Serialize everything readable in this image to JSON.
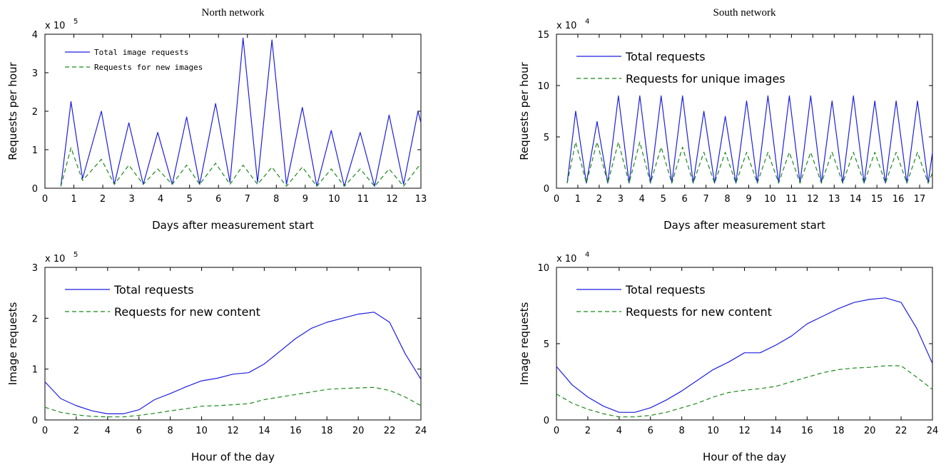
{
  "colors": {
    "total": "#1f1fe0",
    "unique": "#1a8a1a",
    "axis": "#000000"
  },
  "chart_data": [
    {
      "id": "north-daily",
      "type": "line",
      "title": "North network",
      "xlabel": "Days after measurement start",
      "ylabel": "Requests per hour",
      "multiplier": {
        "base": "x 10",
        "exp": "5"
      },
      "xlim": [
        0,
        13
      ],
      "ylim": [
        0,
        4
      ],
      "xticks": [
        0,
        1,
        2,
        3,
        4,
        5,
        6,
        7,
        8,
        9,
        10,
        11,
        12,
        13
      ],
      "yticks": [
        0,
        1,
        2,
        3,
        4
      ],
      "legend_position": "top-left",
      "legend_style": "mono",
      "series": [
        {
          "name": "Total image requests",
          "style": "solid",
          "color_key": "total",
          "daily_peaks": [
            2.25,
            2.0,
            1.7,
            1.45,
            1.85,
            2.2,
            3.9,
            3.85,
            2.1,
            1.5,
            1.45,
            1.9,
            2.0
          ],
          "x": [
            0.55,
            0.9,
            1.3,
            1.95,
            2.4,
            2.9,
            3.4,
            3.9,
            4.4,
            4.9,
            5.35,
            5.9,
            6.4,
            6.85,
            7.35,
            7.85,
            8.35,
            8.9,
            9.4,
            9.9,
            10.35,
            10.9,
            11.4,
            11.9,
            12.4,
            12.9,
            13.0
          ],
          "values": [
            0.05,
            2.25,
            0.25,
            2.0,
            0.1,
            1.7,
            0.1,
            1.45,
            0.1,
            1.85,
            0.1,
            2.2,
            0.15,
            3.9,
            0.15,
            3.85,
            0.1,
            2.1,
            0.05,
            1.5,
            0.05,
            1.45,
            0.05,
            1.9,
            0.1,
            2.0,
            1.7
          ]
        },
        {
          "name": "Requests for new images",
          "style": "dashed",
          "color_key": "unique",
          "x": [
            0.55,
            0.9,
            1.3,
            1.95,
            2.4,
            2.9,
            3.4,
            3.9,
            4.4,
            4.9,
            5.35,
            5.9,
            6.4,
            6.85,
            7.35,
            7.85,
            8.35,
            8.9,
            9.4,
            9.9,
            10.35,
            10.9,
            11.4,
            11.9,
            12.4,
            12.9,
            13.0
          ],
          "values": [
            0.05,
            1.05,
            0.2,
            0.75,
            0.1,
            0.6,
            0.1,
            0.5,
            0.1,
            0.6,
            0.1,
            0.65,
            0.1,
            0.6,
            0.1,
            0.55,
            0.05,
            0.55,
            0.05,
            0.5,
            0.05,
            0.5,
            0.05,
            0.5,
            0.05,
            0.55,
            0.6
          ]
        }
      ]
    },
    {
      "id": "south-daily",
      "type": "line",
      "title": "South network",
      "xlabel": "Days after measurement start",
      "ylabel": "Requests per hour",
      "multiplier": {
        "base": "x 10",
        "exp": "4"
      },
      "xlim": [
        0,
        17.6
      ],
      "ylim": [
        0,
        15
      ],
      "xticks": [
        0,
        1,
        2,
        3,
        4,
        5,
        6,
        7,
        8,
        9,
        10,
        11,
        12,
        13,
        14,
        15,
        16,
        17
      ],
      "yticks": [
        0,
        5,
        10,
        15
      ],
      "legend_position": "top-left",
      "legend_style": "normal",
      "series": [
        {
          "name": "Total requests",
          "style": "solid",
          "color_key": "total",
          "x": [
            0.5,
            0.9,
            1.4,
            1.9,
            2.4,
            2.9,
            3.4,
            3.9,
            4.4,
            4.9,
            5.4,
            5.9,
            6.4,
            6.9,
            7.4,
            7.9,
            8.4,
            8.9,
            9.4,
            9.9,
            10.4,
            10.9,
            11.4,
            11.9,
            12.4,
            12.9,
            13.4,
            13.9,
            14.4,
            14.9,
            15.4,
            15.9,
            16.4,
            16.9,
            17.4,
            17.6
          ],
          "values": [
            0.5,
            7.5,
            0.5,
            6.5,
            0.5,
            9.0,
            0.5,
            9.0,
            0.5,
            9.0,
            0.5,
            9.0,
            0.5,
            7.5,
            0.5,
            7.0,
            0.5,
            8.5,
            0.5,
            9.0,
            0.5,
            9.0,
            0.5,
            9.0,
            0.5,
            8.5,
            0.5,
            9.0,
            0.5,
            8.5,
            0.5,
            8.5,
            0.5,
            8.5,
            0.5,
            3.5
          ]
        },
        {
          "name": "Requests for unique images",
          "style": "dashed",
          "color_key": "unique",
          "x": [
            0.5,
            0.9,
            1.4,
            1.9,
            2.4,
            2.9,
            3.4,
            3.9,
            4.4,
            4.9,
            5.4,
            5.9,
            6.4,
            6.9,
            7.4,
            7.9,
            8.4,
            8.9,
            9.4,
            9.9,
            10.4,
            10.9,
            11.4,
            11.9,
            12.4,
            12.9,
            13.4,
            13.9,
            14.4,
            14.9,
            15.4,
            15.9,
            16.4,
            16.9,
            17.4,
            17.6
          ],
          "values": [
            0.5,
            4.5,
            0.5,
            4.5,
            0.5,
            4.5,
            0.5,
            4.5,
            0.5,
            4.0,
            0.5,
            4.0,
            0.5,
            3.5,
            0.5,
            3.5,
            0.5,
            3.5,
            0.5,
            3.5,
            0.5,
            3.5,
            0.5,
            3.5,
            0.5,
            3.5,
            0.5,
            3.5,
            0.5,
            3.5,
            0.5,
            3.5,
            0.5,
            3.5,
            0.5,
            1.5
          ]
        }
      ]
    },
    {
      "id": "north-hourly",
      "type": "line",
      "title": "",
      "xlabel": "Hour of the day",
      "ylabel": "Image requests",
      "multiplier": {
        "base": "x 10",
        "exp": "5"
      },
      "xlim": [
        0,
        24
      ],
      "ylim": [
        0,
        3
      ],
      "xticks": [
        0,
        2,
        4,
        6,
        8,
        10,
        12,
        14,
        16,
        18,
        20,
        22,
        24
      ],
      "yticks": [
        0,
        1,
        2,
        3
      ],
      "legend_position": "top-left",
      "legend_style": "normal",
      "series": [
        {
          "name": "Total requests",
          "style": "solid",
          "color_key": "total",
          "x": [
            0,
            1,
            2,
            3,
            4,
            5,
            6,
            7,
            8,
            9,
            10,
            11,
            12,
            13,
            14,
            15,
            16,
            17,
            18,
            19,
            20,
            21,
            22,
            23,
            24
          ],
          "values": [
            0.75,
            0.42,
            0.28,
            0.18,
            0.12,
            0.12,
            0.2,
            0.4,
            0.52,
            0.65,
            0.77,
            0.82,
            0.9,
            0.93,
            1.1,
            1.35,
            1.6,
            1.8,
            1.92,
            2.0,
            2.08,
            2.12,
            1.92,
            1.3,
            0.8
          ]
        },
        {
          "name": "Requests for new content",
          "style": "dashed",
          "color_key": "unique",
          "x": [
            0,
            1,
            2,
            3,
            4,
            5,
            6,
            7,
            8,
            9,
            10,
            11,
            12,
            13,
            14,
            15,
            16,
            17,
            18,
            19,
            20,
            21,
            22,
            23,
            24
          ],
          "values": [
            0.25,
            0.15,
            0.1,
            0.07,
            0.06,
            0.06,
            0.09,
            0.13,
            0.18,
            0.22,
            0.27,
            0.28,
            0.3,
            0.32,
            0.4,
            0.45,
            0.5,
            0.55,
            0.6,
            0.62,
            0.63,
            0.64,
            0.58,
            0.45,
            0.28
          ]
        }
      ]
    },
    {
      "id": "south-hourly",
      "type": "line",
      "title": "",
      "xlabel": "Hour of the day",
      "ylabel": "Image requests",
      "multiplier": {
        "base": "x 10",
        "exp": "4"
      },
      "xlim": [
        0,
        24
      ],
      "ylim": [
        0,
        10
      ],
      "xticks": [
        0,
        2,
        4,
        6,
        8,
        10,
        12,
        14,
        16,
        18,
        20,
        22,
        24
      ],
      "yticks": [
        0,
        5,
        10
      ],
      "legend_position": "top-left",
      "legend_style": "normal",
      "series": [
        {
          "name": "Total requests",
          "style": "solid",
          "color_key": "total",
          "x": [
            0,
            1,
            2,
            3,
            4,
            5,
            6,
            7,
            8,
            9,
            10,
            11,
            12,
            13,
            14,
            15,
            16,
            17,
            18,
            19,
            20,
            21,
            22,
            23,
            24
          ],
          "values": [
            3.5,
            2.3,
            1.5,
            0.9,
            0.5,
            0.5,
            0.8,
            1.3,
            1.9,
            2.6,
            3.3,
            3.8,
            4.4,
            4.4,
            4.9,
            5.5,
            6.3,
            6.8,
            7.3,
            7.7,
            7.9,
            8.0,
            7.7,
            6.0,
            3.7
          ]
        },
        {
          "name": "Requests for new content",
          "style": "dashed",
          "color_key": "unique",
          "x": [
            0,
            1,
            2,
            3,
            4,
            5,
            6,
            7,
            8,
            9,
            10,
            11,
            12,
            13,
            14,
            15,
            16,
            17,
            18,
            19,
            20,
            21,
            22,
            23,
            24
          ],
          "values": [
            1.7,
            1.1,
            0.7,
            0.4,
            0.2,
            0.2,
            0.3,
            0.5,
            0.8,
            1.1,
            1.5,
            1.8,
            1.95,
            2.05,
            2.2,
            2.5,
            2.8,
            3.1,
            3.3,
            3.4,
            3.45,
            3.55,
            3.55,
            2.8,
            2.0
          ]
        }
      ]
    }
  ]
}
